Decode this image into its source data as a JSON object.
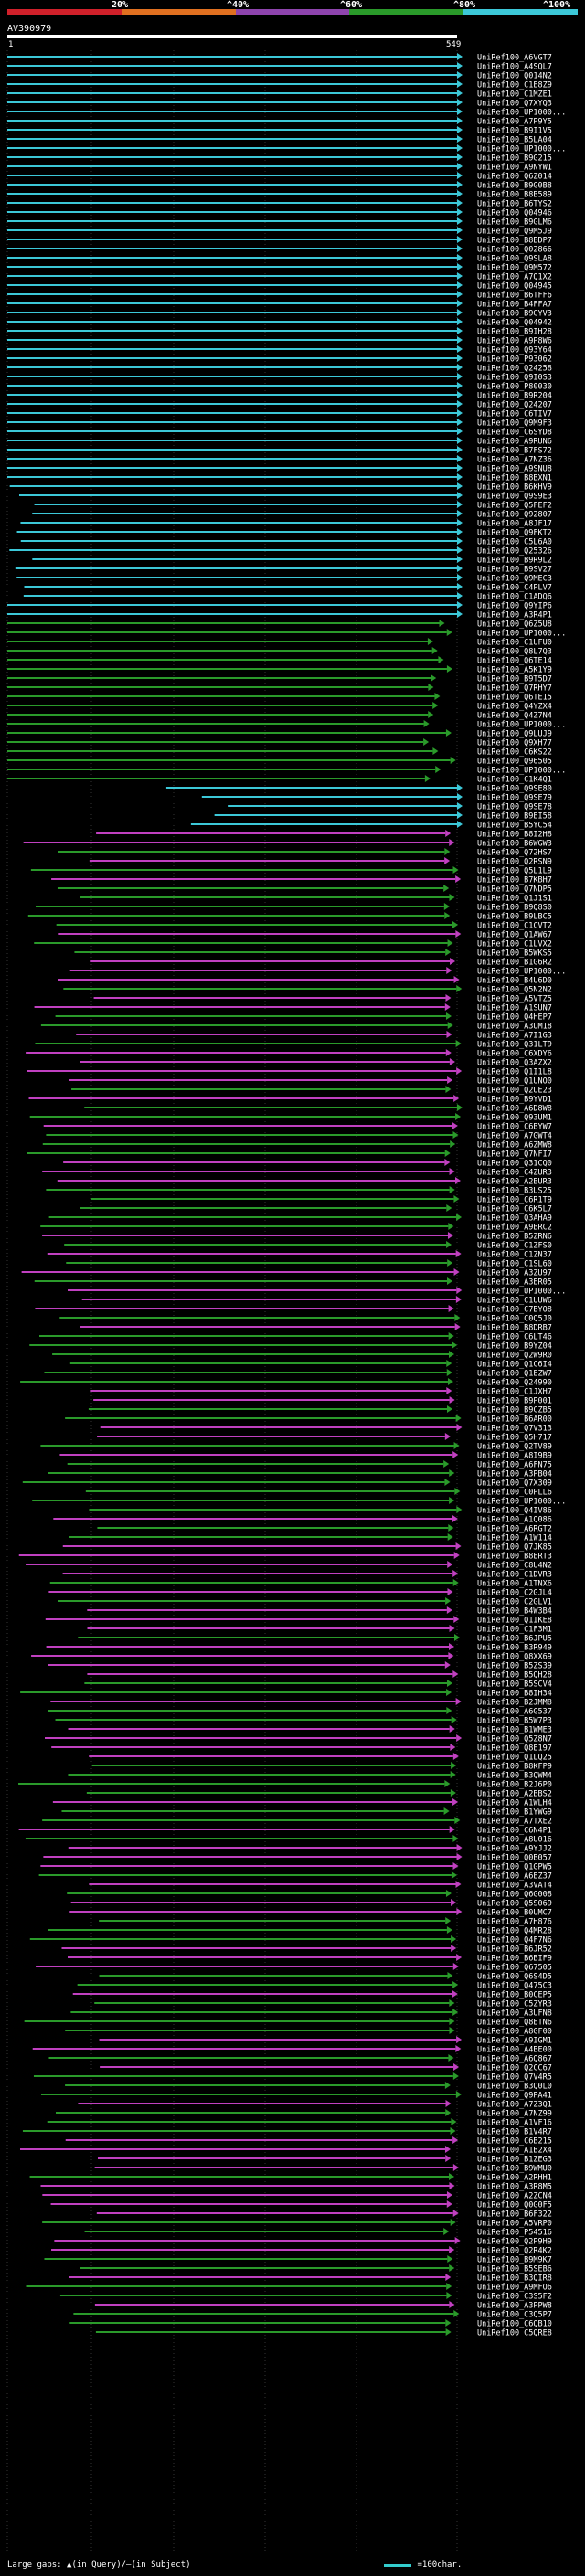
{
  "legend": {
    "segments": [
      "#d0202a",
      "#e07020",
      "#8e44ad",
      "#2a9a2a",
      "#3cc8d8"
    ],
    "labels": [
      "20%",
      "^40%",
      "^60%",
      "^80%",
      "^100%"
    ]
  },
  "query": {
    "title": "AV390979",
    "start": "1",
    "end": "549"
  },
  "footer": {
    "left": "Large gaps: ▲(in Query)/—(in Subject)",
    "right": "=100char."
  },
  "colors": {
    "cyan": "#3cc8d8",
    "green": "#2a9a2a",
    "magenta": "#c040c0",
    "gray": "#888888"
  },
  "hits": [
    "UniRef100_A6VGT7",
    "UniRef100_A4SQL7",
    "UniRef100_Q014N2",
    "UniRef100_C1E8Z9",
    "UniRef100_C1MZE1",
    "UniRef100_Q7XYQ3",
    "UniRef100_UP1000...",
    "UniRef100_A7P9Y5",
    "UniRef100_B9I1V5",
    "UniRef100_B5LA04",
    "UniRef100_UP1000...",
    "UniRef100_B9G215",
    "UniRef100_A9NYW1",
    "UniRef100_Q6Z014",
    "UniRef100_B9G0B8",
    "UniRef100_B8B589",
    "UniRef100_B6TYS2",
    "UniRef100_Q04946",
    "UniRef100_B9GLM6",
    "UniRef100_Q9M5J9",
    "UniRef100_B8BDP7",
    "UniRef100_Q02866",
    "UniRef100_Q9SLA8",
    "UniRef100_Q9M572",
    "UniRef100_A7Q1X2",
    "UniRef100_Q04945",
    "UniRef100_B6TFF6",
    "UniRef100_B4FFA7",
    "UniRef100_B9GYV3",
    "UniRef100_Q04942",
    "UniRef100_B9IH28",
    "UniRef100_A9P8W6",
    "UniRef100_Q93Y64",
    "UniRef100_P93062",
    "UniRef100_Q24258",
    "UniRef100_Q9I0S3",
    "UniRef100_P80030",
    "UniRef100_B9R204",
    "UniRef100_Q24207",
    "UniRef100_C6TIV7",
    "UniRef100_Q9M9F3",
    "UniRef100_C6SYD8",
    "UniRef100_A9RUN6",
    "UniRef100_B7FS72",
    "UniRef100_A7NZ36",
    "UniRef100_A9SNU8",
    "UniRef100_B8BXN1",
    "UniRef100_B6KHV9",
    "UniRef100_Q9S9E3",
    "UniRef100_Q5FEF2",
    "UniRef100_Q92807",
    "UniRef100_A8JF17",
    "UniRef100_Q9FKT2",
    "UniRef100_C5L6A0",
    "UniRef100_Q25326",
    "UniRef100_B9R9L2",
    "UniRef100_B9SV27",
    "UniRef100_Q9MEC3",
    "UniRef100_C4PLV7",
    "UniRef100_C1ADQ6",
    "UniRef100_Q9YIP6",
    "UniRef100_A3R4P1",
    "UniRef100_Q6Z5U8",
    "UniRef100_UP1000...",
    "UniRef100_C1UFU0",
    "UniRef100_Q8L7Q3",
    "UniRef100_Q6TE14",
    "UniRef100_A5K1Y9",
    "UniRef100_B9T5D7",
    "UniRef100_Q7RHY7",
    "UniRef100_Q6TE15",
    "UniRef100_Q4YZX4",
    "UniRef100_Q4Z7N4",
    "UniRef100_UP1000...",
    "UniRef100_Q9LUJ9",
    "UniRef100_Q9XH77",
    "UniRef100_C6KS22",
    "UniRef100_Q96505",
    "UniRef100_UP1000...",
    "UniRef100_C1K4Q1",
    "UniRef100_Q9SE80",
    "UniRef100_Q9SE79",
    "UniRef100_Q9SE78",
    "UniRef100_B9EI58",
    "UniRef100_B5YC54",
    "UniRef100_B8I2H8",
    "UniRef100_B6WGW3",
    "UniRef100_Q72HS7",
    "UniRef100_Q2RSN9",
    "UniRef100_Q5L1L9",
    "UniRef100_B7KBH7",
    "UniRef100_Q7NDP5",
    "UniRef100_Q1J1S1",
    "UniRef100_B9Q8S0",
    "UniRef100_B9LBC5",
    "UniRef100_C1CVT2",
    "UniRef100_Q1AW67",
    "UniRef100_C1LVX2",
    "UniRef100_B5WKS5",
    "UniRef100_B1G6R2",
    "UniRef100_UP1000...",
    "UniRef100_B4U6D0",
    "UniRef100_Q5N2N2",
    "UniRef100_A5VTZ5",
    "UniRef100_A1SUN7",
    "UniRef100_Q4HEP7",
    "UniRef100_A3UM18",
    "UniRef100_A7I1G3",
    "UniRef100_Q31LT9",
    "UniRef100_C6XDY6",
    "UniRef100_Q3AZX2",
    "UniRef100_Q1I1L8",
    "UniRef100_Q1UNO0",
    "UniRef100_Q2UE23",
    "UniRef100_B9YVD1",
    "UniRef100_A6D8W8",
    "UniRef100_Q93UM1",
    "UniRef100_C6BYW7",
    "UniRef100_A7GWT4",
    "UniRef100_A6ZMW8",
    "UniRef100_Q7NFI7",
    "UniRef100_Q31CQ0",
    "UniRef100_C4ZUR3",
    "UniRef100_A2BUR3",
    "UniRef100_B3US25",
    "UniRef100_C6R1T9",
    "UniRef100_C6K5L7",
    "UniRef100_Q3AHA9",
    "UniRef100_A9BRC2",
    "UniRef100_B5ZRN6",
    "UniRef100_C1ZFS0",
    "UniRef100_C1ZN37",
    "UniRef100_C1SL60",
    "UniRef100_A3ZU97",
    "UniRef100_A3ER05",
    "UniRef100_UP1000...",
    "UniRef100_C1UUW6",
    "UniRef100_C7BYO8",
    "UniRef100_C0Q5J0",
    "UniRef100_B8DRB7",
    "UniRef100_C6LT46",
    "UniRef100_B9YZ04",
    "UniRef100_Q2W9R0",
    "UniRef100_Q1C6I4",
    "UniRef100_Q1EZW7",
    "UniRef100_Q24990",
    "UniRef100_C1JXH7",
    "UniRef100_B9P001",
    "UniRef100_B9CZB5",
    "UniRef100_B6AR00",
    "UniRef100_Q7V313",
    "UniRef100_Q5H717",
    "UniRef100_Q2TV89",
    "UniRef100_A8I9B9",
    "UniRef100_A6FN75",
    "UniRef100_A3PB04",
    "UniRef100_Q7X309",
    "UniRef100_C0PLL6",
    "UniRef100_UP1000...",
    "UniRef100_Q4IV86",
    "UniRef100_A1Q086",
    "UniRef100_A6RGT2",
    "UniRef100_A1W114",
    "UniRef100_Q7JK85",
    "UniRef100_B8ERT3",
    "UniRef100_C8U4N2",
    "UniRef100_C1DVR3",
    "UniRef100_A1TNX6",
    "UniRef100_C2GJL4",
    "UniRef100_C2GLV1",
    "UniRef100_B4W3B4",
    "UniRef100_Q1IKE8",
    "UniRef100_C1F3M1",
    "UniRef100_B6JPU5",
    "UniRef100_B3R949",
    "UniRef100_Q8XX69",
    "UniRef100_B5ZS39",
    "UniRef100_B5QH28",
    "UniRef100_B5SCV4",
    "UniRef100_B8IH34",
    "UniRef100_B2JMM8",
    "UniRef100_A6G537",
    "UniRef100_B5W7P3",
    "UniRef100_B1WME3",
    "UniRef100_Q5Z8N7",
    "UniRef100_Q8E197",
    "UniRef100_Q1LQ25",
    "UniRef100_B8KFP9",
    "UniRef100_B3QWM4",
    "UniRef100_B2J6P0",
    "UniRef100_A2BBS2",
    "UniRef100_A1WLH4",
    "UniRef100_B1YWG9",
    "UniRef100_A7TXE2",
    "UniRef100_C6N4P1",
    "UniRef100_A8U016",
    "UniRef100_A9YJJ2",
    "UniRef100_Q0B057",
    "UniRef100_Q1GPW5",
    "UniRef100_A6EZ37",
    "UniRef100_A3VAT4",
    "UniRef100_Q6G008",
    "UniRef100_Q5S069",
    "UniRef100_B0UMC7",
    "UniRef100_A7H876",
    "UniRef100_Q4MR28",
    "UniRef100_Q4F7N6",
    "UniRef100_B6JR52",
    "UniRef100_B6BIF9",
    "UniRef100_Q67505",
    "UniRef100_Q6S4D5",
    "UniRef100_Q475C3",
    "UniRef100_B0CEP5",
    "UniRef100_C5ZYR3",
    "UniRef100_A3UFN8",
    "UniRef100_Q8ETN6",
    "UniRef100_A8GF00",
    "UniRef100_A9IGM1",
    "UniRef100_A4BE00",
    "UniRef100_A6Q867",
    "UniRef100_Q2CC67",
    "UniRef100_Q7V4R5",
    "UniRef100_B3Q0L0",
    "UniRef100_Q9PA41",
    "UniRef100_A7Z3Q1",
    "UniRef100_A7NZ99",
    "UniRef100_A1VF16",
    "UniRef100_B1V4R7",
    "UniRef100_C6B215",
    "UniRef100_A1B2X4",
    "UniRef100_B1ZEG3",
    "UniRef100_B9WMU0",
    "UniRef100_A2RHH1",
    "UniRef100_A3R8M5",
    "UniRef100_A2ZCN4",
    "UniRef100_Q0G0F5",
    "UniRef100_B6F322",
    "UniRef100_A5VRP0",
    "UniRef100_P54516",
    "UniRef100_Q2P9H9",
    "UniRef100_Q2R4K2",
    "UniRef100_B9M9K7",
    "UniRef100_B5SEB6",
    "UniRef100_B3QIR8",
    "UniRef100_A9MFO6",
    "UniRef100_C3S5F2",
    "UniRef100_A3PPW8",
    "UniRef100_C3Q5P7",
    "UniRef100_C6QB10",
    "UniRef100_C5QRE8"
  ]
}
